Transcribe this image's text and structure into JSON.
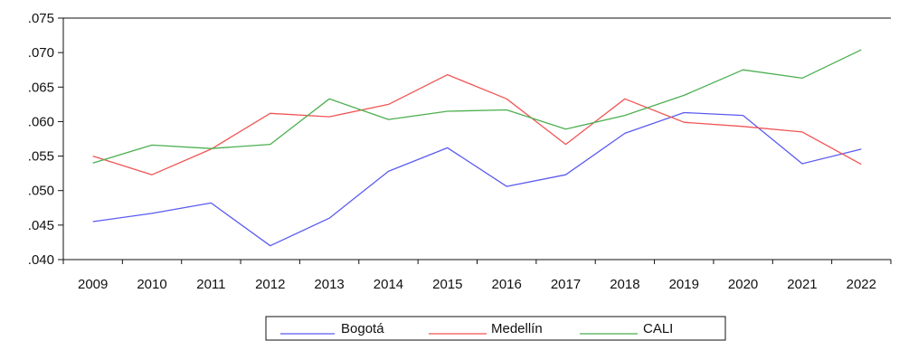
{
  "chart_data": {
    "type": "line",
    "title": "",
    "xlabel": "",
    "ylabel": "",
    "categories": [
      "2009",
      "2010",
      "2011",
      "2012",
      "2013",
      "2014",
      "2015",
      "2016",
      "2017",
      "2018",
      "2019",
      "2020",
      "2021",
      "2022"
    ],
    "ylim": [
      0.04,
      0.075
    ],
    "y_ticks": [
      ".040",
      ".045",
      ".050",
      ".055",
      ".060",
      ".065",
      ".070",
      ".075"
    ],
    "y_tick_values": [
      0.04,
      0.045,
      0.05,
      0.055,
      0.06,
      0.065,
      0.07,
      0.075
    ],
    "grid": false,
    "legend_position": "bottom",
    "series": [
      {
        "name": "Bogotá",
        "color": "#5b5bf0",
        "values": [
          0.0455,
          0.0467,
          0.0482,
          0.042,
          0.046,
          0.0528,
          0.0562,
          0.0506,
          0.0523,
          0.0583,
          0.0613,
          0.0609,
          0.0539,
          0.056
        ]
      },
      {
        "name": "Medellín",
        "color": "#f05555",
        "values": [
          0.055,
          0.0523,
          0.056,
          0.0612,
          0.0607,
          0.0625,
          0.0668,
          0.0633,
          0.0567,
          0.0633,
          0.0599,
          0.0593,
          0.0585,
          0.0538
        ]
      },
      {
        "name": "CALI",
        "color": "#4caf50",
        "values": [
          0.054,
          0.0566,
          0.0561,
          0.0567,
          0.0633,
          0.0603,
          0.0615,
          0.0617,
          0.0589,
          0.0609,
          0.0638,
          0.0675,
          0.0663,
          0.0704
        ]
      }
    ]
  }
}
